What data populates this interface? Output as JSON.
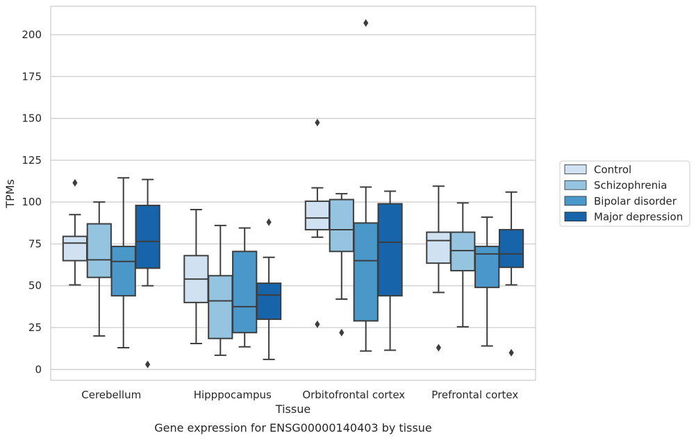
{
  "chart_data": {
    "type": "box",
    "title": "",
    "caption": "Gene expression for ENSG00000140403 by tissue",
    "xlabel": "Tissue",
    "ylabel": "TPMs",
    "ylim": [
      -6.5,
      217
    ],
    "yticks": [
      0,
      25,
      50,
      75,
      100,
      125,
      150,
      175,
      200
    ],
    "grid": "horizontal",
    "legend_position": "right",
    "categories": [
      "Cerebellum",
      "Hipppocampus",
      "Orbitofrontal cortex",
      "Prefrontal cortex"
    ],
    "series": [
      {
        "name": "Control",
        "color": "#d0e1f2",
        "boxes": [
          {
            "whisker_low": 50.5,
            "q1": 65,
            "median": 75.5,
            "q3": 79.5,
            "whisker_high": 92.5,
            "outliers": [
              111.5
            ]
          },
          {
            "whisker_low": 15.5,
            "q1": 40,
            "median": 54,
            "q3": 68,
            "whisker_high": 95.5,
            "outliers": []
          },
          {
            "whisker_low": 79,
            "q1": 83.5,
            "median": 90.5,
            "q3": 100.5,
            "whisker_high": 108.5,
            "outliers": [
              147.5,
              27
            ]
          },
          {
            "whisker_low": 46,
            "q1": 63.5,
            "median": 77,
            "q3": 82,
            "whisker_high": 109.5,
            "outliers": [
              13
            ]
          }
        ]
      },
      {
        "name": "Schizophrenia",
        "color": "#94c4df",
        "boxes": [
          {
            "whisker_low": 20,
            "q1": 55,
            "median": 65.5,
            "q3": 87,
            "whisker_high": 100,
            "outliers": []
          },
          {
            "whisker_low": 8.5,
            "q1": 18.5,
            "median": 41,
            "q3": 56,
            "whisker_high": 86,
            "outliers": []
          },
          {
            "whisker_low": 42,
            "q1": 70.5,
            "median": 83.5,
            "q3": 101.5,
            "whisker_high": 105,
            "outliers": [
              22
            ]
          },
          {
            "whisker_low": 25.5,
            "q1": 59,
            "median": 71,
            "q3": 82,
            "whisker_high": 99.5,
            "outliers": []
          }
        ]
      },
      {
        "name": "Bipolar disorder",
        "color": "#4a98c9",
        "boxes": [
          {
            "whisker_low": 13,
            "q1": 44,
            "median": 64.5,
            "q3": 73.5,
            "whisker_high": 114.5,
            "outliers": []
          },
          {
            "whisker_low": 13.5,
            "q1": 22,
            "median": 37.5,
            "q3": 70.5,
            "whisker_high": 84.5,
            "outliers": []
          },
          {
            "whisker_low": 11,
            "q1": 29,
            "median": 65,
            "q3": 87.5,
            "whisker_high": 109,
            "outliers": [
              207
            ]
          },
          {
            "whisker_low": 14,
            "q1": 49,
            "median": 69,
            "q3": 73.5,
            "whisker_high": 91,
            "outliers": []
          }
        ]
      },
      {
        "name": "Major depression",
        "color": "#1764ab",
        "boxes": [
          {
            "whisker_low": 50,
            "q1": 60.5,
            "median": 76.5,
            "q3": 98,
            "whisker_high": 113.5,
            "outliers": [
              3
            ]
          },
          {
            "whisker_low": 6,
            "q1": 30,
            "median": 44.5,
            "q3": 51.5,
            "whisker_high": 67,
            "outliers": [
              88
            ]
          },
          {
            "whisker_low": 11.5,
            "q1": 44,
            "median": 76,
            "q3": 99,
            "whisker_high": 106.5,
            "outliers": []
          },
          {
            "whisker_low": 50.5,
            "q1": 61,
            "median": 69,
            "q3": 83.5,
            "whisker_high": 106,
            "outliers": [
              10
            ]
          }
        ]
      }
    ]
  }
}
